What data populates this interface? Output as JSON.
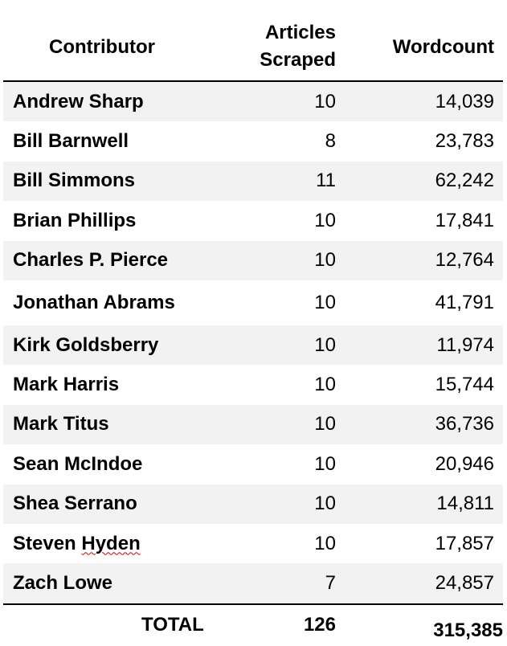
{
  "header": {
    "contributor": "Contributor",
    "articles_line1": "Articles",
    "articles_line2": "Scraped",
    "wordcount": "Wordcount"
  },
  "rows": [
    {
      "name": "Andrew Sharp",
      "articles": "10",
      "wordcount": "14,039"
    },
    {
      "name": "Bill Barnwell",
      "articles": "8",
      "wordcount": "23,783"
    },
    {
      "name": "Bill Simmons",
      "articles": "11",
      "wordcount": "62,242"
    },
    {
      "name": "Brian Phillips",
      "articles": "10",
      "wordcount": "17,841"
    },
    {
      "name": "Charles P. Pierce",
      "articles": "10",
      "wordcount": "12,764"
    },
    {
      "name": "Jonathan Abrams",
      "articles": "10",
      "wordcount": "41,791"
    },
    {
      "name": "Kirk Goldsberry",
      "articles": "10",
      "wordcount": "11,974"
    },
    {
      "name": "Mark Harris",
      "articles": "10",
      "wordcount": "15,744"
    },
    {
      "name": "Mark Titus",
      "articles": "10",
      "wordcount": "36,736"
    },
    {
      "name": "Sean McIndoe",
      "articles": "10",
      "wordcount": "20,946"
    },
    {
      "name": "Shea Serrano",
      "articles": "10",
      "wordcount": "14,811"
    },
    {
      "name": "Steven Hyden",
      "name_first": "Steven",
      "name_last": "Hyden",
      "articles": "10",
      "wordcount": "17,857"
    },
    {
      "name": "Zach Lowe",
      "articles": "7",
      "wordcount": "24,857"
    }
  ],
  "total": {
    "label": "TOTAL",
    "articles": "126",
    "wordcount": "315,385"
  },
  "colors": {
    "shaded_row": "#f2f2f2",
    "rule": "#000000",
    "spellcheck_squiggle": "#d00000"
  }
}
